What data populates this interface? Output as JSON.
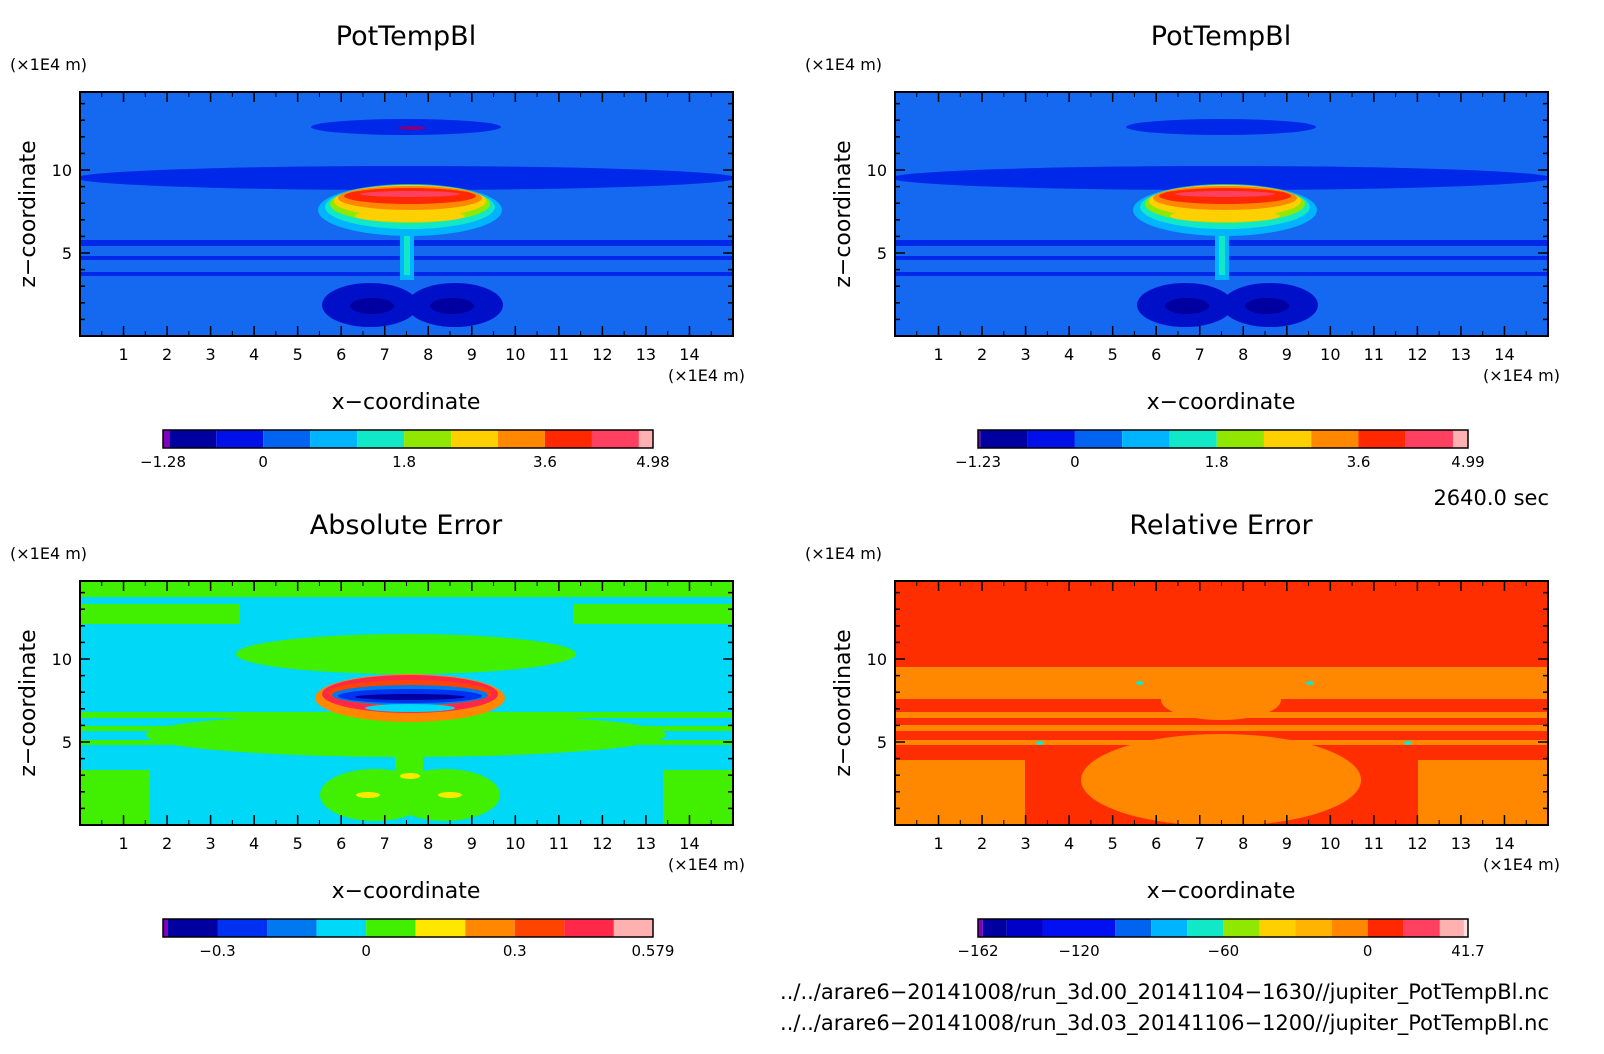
{
  "chart_data": [
    {
      "type": "heatmap",
      "title": "PotTempBl",
      "xlabel": "x−coordinate",
      "ylabel": "z−coordinate",
      "xunit": "(×1E4 m)",
      "yunit": "(×1E4 m)",
      "xlim": [
        0,
        15
      ],
      "ylim": [
        0,
        14.7
      ],
      "xticks": [
        "1",
        "2",
        "3",
        "4",
        "5",
        "6",
        "7",
        "8",
        "9",
        "10",
        "11",
        "12",
        "13",
        "14"
      ],
      "yticks": [
        "5",
        "10"
      ],
      "colorbar": {
        "range": [
          -1.28,
          4.98
        ],
        "ticks": [
          {
            "v": -1.28,
            "label": "−1.28"
          },
          {
            "v": 0,
            "label": "0"
          },
          {
            "v": 1.8,
            "label": "1.8"
          },
          {
            "v": 3.6,
            "label": "3.6"
          },
          {
            "v": 4.98,
            "label": "4.98"
          }
        ],
        "levels": [
          -1.28,
          -1.2,
          -0.6,
          0,
          0.6,
          1.2,
          1.8,
          2.4,
          3.0,
          3.6,
          4.2,
          4.8,
          4.98
        ],
        "colors": [
          "#8000c0",
          "#0000a0",
          "#0010e8",
          "#0064f0",
          "#00b4ff",
          "#10e8c8",
          "#90e800",
          "#ffd000",
          "#ff8800",
          "#ff2800",
          "#ff4060",
          "#ffb0b0"
        ]
      },
      "background": "#1469f0"
    },
    {
      "type": "heatmap",
      "title": "PotTempBl",
      "xlabel": "x−coordinate",
      "ylabel": "z−coordinate",
      "xunit": "(×1E4 m)",
      "yunit": "(×1E4 m)",
      "xlim": [
        0,
        15
      ],
      "ylim": [
        0,
        14.7
      ],
      "xticks": [
        "1",
        "2",
        "3",
        "4",
        "5",
        "6",
        "7",
        "8",
        "9",
        "10",
        "11",
        "12",
        "13",
        "14"
      ],
      "yticks": [
        "5",
        "10"
      ],
      "colorbar": {
        "range": [
          -1.23,
          4.99
        ],
        "ticks": [
          {
            "v": -1.23,
            "label": "−1.23"
          },
          {
            "v": 0,
            "label": "0"
          },
          {
            "v": 1.8,
            "label": "1.8"
          },
          {
            "v": 3.6,
            "label": "3.6"
          },
          {
            "v": 4.99,
            "label": "4.99"
          }
        ],
        "levels": [
          -1.23,
          -1.2,
          -0.6,
          0,
          0.6,
          1.2,
          1.8,
          2.4,
          3.0,
          3.6,
          4.2,
          4.8,
          4.99
        ],
        "colors": [
          "#8000c0",
          "#0000a0",
          "#0010e8",
          "#0064f0",
          "#00b4ff",
          "#10e8c8",
          "#90e800",
          "#ffd000",
          "#ff8800",
          "#ff2800",
          "#ff4060",
          "#ffb0b0"
        ]
      },
      "background": "#1469f0"
    },
    {
      "type": "heatmap",
      "title": "Absolute Error",
      "xlabel": "x−coordinate",
      "ylabel": "z−coordinate",
      "xunit": "(×1E4 m)",
      "yunit": "(×1E4 m)",
      "xlim": [
        0,
        15
      ],
      "ylim": [
        0,
        14.7
      ],
      "xticks": [
        "1",
        "2",
        "3",
        "4",
        "5",
        "6",
        "7",
        "8",
        "9",
        "10",
        "11",
        "12",
        "13",
        "14"
      ],
      "yticks": [
        "5",
        "10"
      ],
      "colorbar": {
        "range": [
          -0.41,
          0.579
        ],
        "ticks": [
          {
            "v": -0.3,
            "label": "−0.3"
          },
          {
            "v": 0,
            "label": "0"
          },
          {
            "v": 0.3,
            "label": "0.3"
          },
          {
            "v": 0.579,
            "label": "0.579"
          }
        ],
        "levels": [
          -0.41,
          -0.4,
          -0.3,
          -0.2,
          -0.1,
          0,
          0.1,
          0.2,
          0.3,
          0.4,
          0.5,
          0.579
        ],
        "colors": [
          "#8000c0",
          "#0000a0",
          "#0030f0",
          "#0078f0",
          "#00d8f8",
          "#40f000",
          "#ffe800",
          "#ff8800",
          "#ff4400",
          "#ff2848",
          "#ffb0b0"
        ]
      },
      "background": "#00d8f8"
    },
    {
      "type": "heatmap",
      "title": "Relative Error",
      "xlabel": "x−coordinate",
      "ylabel": "z−coordinate",
      "xunit": "(×1E4 m)",
      "yunit": "(×1E4 m)",
      "xlim": [
        0,
        15
      ],
      "ylim": [
        0,
        14.7
      ],
      "xticks": [
        "1",
        "2",
        "3",
        "4",
        "5",
        "6",
        "7",
        "8",
        "9",
        "10",
        "11",
        "12",
        "13",
        "14"
      ],
      "yticks": [
        "5",
        "10"
      ],
      "colorbar": {
        "range": [
          -162,
          41.7
        ],
        "ticks": [
          {
            "v": -162,
            "label": "−162"
          },
          {
            "v": -120,
            "label": "−120"
          },
          {
            "v": -60,
            "label": "−60"
          },
          {
            "v": 0,
            "label": "0"
          },
          {
            "v": 41.7,
            "label": "41.7"
          }
        ],
        "levels": [
          -162,
          -160,
          -150,
          -135,
          -105,
          -90,
          -75,
          -60,
          -45,
          -30,
          -15,
          0,
          15,
          30,
          40,
          41.7
        ],
        "colors": [
          "#8000c0",
          "#0000a0",
          "#0000c8",
          "#0010f0",
          "#0064f0",
          "#00b4ff",
          "#10e8c8",
          "#90e800",
          "#ffd000",
          "#ffb400",
          "#ff8800",
          "#ff2800",
          "#ff4060",
          "#ffb0b0",
          "#ffe0e0"
        ]
      },
      "background": "#ff2e00"
    }
  ],
  "time_label": "2640.0 sec",
  "file_paths": [
    "../../arare6−20141008/run_3d.00_20141104−1630//jupiter_PotTempBl.nc",
    "../../arare6−20141008/run_3d.03_20141106−1200//jupiter_PotTempBl.nc"
  ]
}
